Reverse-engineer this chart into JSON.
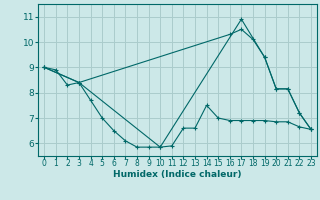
{
  "xlabel": "Humidex (Indice chaleur)",
  "bg_color": "#cce8e8",
  "grid_color": "#aacccc",
  "line_color": "#006868",
  "xlim": [
    -0.5,
    23.5
  ],
  "ylim": [
    5.5,
    11.5
  ],
  "xticks": [
    0,
    1,
    2,
    3,
    4,
    5,
    6,
    7,
    8,
    9,
    10,
    11,
    12,
    13,
    14,
    15,
    16,
    17,
    18,
    19,
    20,
    21,
    22,
    23
  ],
  "yticks": [
    6,
    7,
    8,
    9,
    10,
    11
  ],
  "series": [
    {
      "x": [
        0,
        1,
        2,
        3,
        4,
        5,
        6,
        7,
        8,
        9,
        10,
        11,
        12,
        13,
        14,
        15,
        16,
        17,
        18,
        19,
        20,
        21,
        22,
        23
      ],
      "y": [
        9.0,
        8.9,
        8.3,
        8.4,
        7.7,
        7.0,
        6.5,
        6.1,
        5.85,
        5.85,
        5.85,
        5.9,
        6.6,
        6.6,
        7.5,
        7.0,
        6.9,
        6.9,
        6.9,
        6.9,
        6.85,
        6.85,
        6.65,
        6.55
      ]
    },
    {
      "x": [
        0,
        3,
        10,
        17,
        19,
        20,
        21,
        22,
        23
      ],
      "y": [
        9.0,
        8.4,
        5.85,
        10.9,
        9.4,
        8.15,
        8.15,
        7.2,
        6.55
      ]
    },
    {
      "x": [
        0,
        3,
        16,
        17,
        18,
        19,
        20,
        21,
        22,
        23
      ],
      "y": [
        9.0,
        8.4,
        10.3,
        10.5,
        10.1,
        9.4,
        8.15,
        8.15,
        7.2,
        6.55
      ]
    }
  ]
}
